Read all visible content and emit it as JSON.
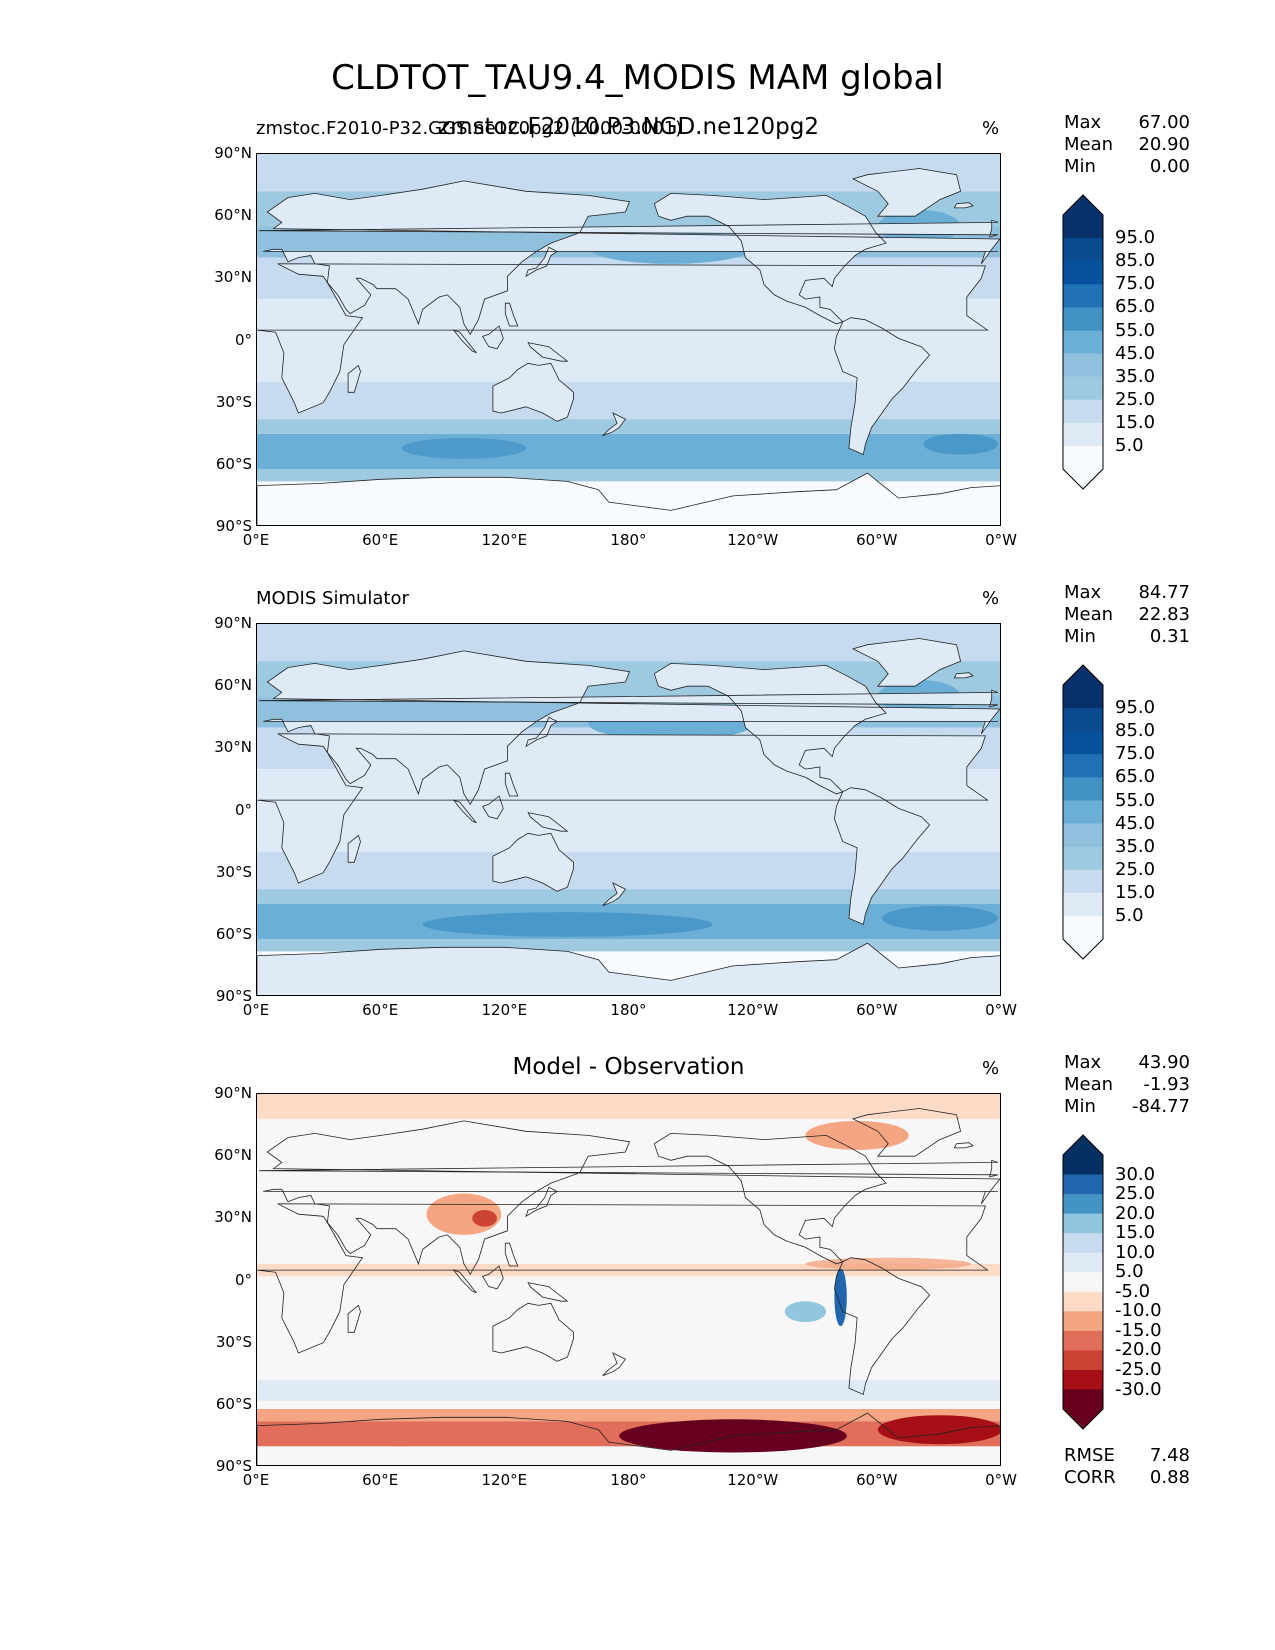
{
  "title": "CLDTOT_TAU9.4_MODIS MAM global",
  "x_ticks": [
    "0°E",
    "60°E",
    "120°E",
    "180°",
    "120°W",
    "60°W",
    "0°W"
  ],
  "y_ticks": [
    "90°N",
    "60°N",
    "30°N",
    "0°",
    "30°S",
    "60°S",
    "90°S"
  ],
  "panels": [
    {
      "left_title": "zmstoc.F2010-P32.GGS.ne120pg2 (2000-0001)",
      "center_title": "zmstoc.F2010.P3.NGD.ne120pg2",
      "units": "%",
      "stats": [
        {
          "name": "Max",
          "value": "67.00"
        },
        {
          "name": "Mean",
          "value": "20.90"
        },
        {
          "name": "Min",
          "value": "0.00"
        }
      ],
      "colorbar_labels": [
        "95.0",
        "85.0",
        "75.0",
        "65.0",
        "55.0",
        "45.0",
        "35.0",
        "25.0",
        "15.0",
        "5.0"
      ]
    },
    {
      "left_title": "MODIS Simulator",
      "center_title": "",
      "units": "%",
      "stats": [
        {
          "name": "Max",
          "value": "84.77"
        },
        {
          "name": "Mean",
          "value": "22.83"
        },
        {
          "name": "Min",
          "value": "0.31"
        }
      ],
      "colorbar_labels": [
        "95.0",
        "85.0",
        "75.0",
        "65.0",
        "55.0",
        "45.0",
        "35.0",
        "25.0",
        "15.0",
        "5.0"
      ]
    },
    {
      "left_title": "",
      "center_title": "Model - Observation",
      "units": "%",
      "stats": [
        {
          "name": "Max",
          "value": "43.90"
        },
        {
          "name": "Mean",
          "value": "-1.93"
        },
        {
          "name": "Min",
          "value": "-84.77"
        }
      ],
      "colorbar_labels": [
        "30.0",
        "25.0",
        "20.0",
        "15.0",
        "10.0",
        "5.0",
        "-5.0",
        "-10.0",
        "-15.0",
        "-20.0",
        "-25.0",
        "-30.0"
      ],
      "bottom_stats": [
        {
          "name": "RMSE",
          "value": "7.48"
        },
        {
          "name": "CORR",
          "value": "0.88"
        }
      ]
    }
  ],
  "colors": {
    "seq_blues": [
      "#f7fbff",
      "#deebf7",
      "#c6dbef",
      "#9ecae1",
      "#8fc1de",
      "#6baed6",
      "#4292c6",
      "#2171b5",
      "#08519c",
      "#0a4a90",
      "#08306b"
    ],
    "diverging": [
      "#67001f",
      "#a50f15",
      "#cb4335",
      "#e06e5a",
      "#f4a582",
      "#fddbc7",
      "#f7f7f7",
      "#deebf7",
      "#c6dbef",
      "#92c5de",
      "#4393c3",
      "#2166ac",
      "#053061"
    ],
    "coast": "#222222"
  },
  "chart_data": [
    {
      "type": "heatmap",
      "variable": "CLDTOT_TAU9.4_MODIS",
      "lat_range": [
        -90,
        90
      ],
      "lon_range": [
        0,
        360
      ],
      "stats": {
        "max": 67.0,
        "mean": 20.9,
        "min": 0.0
      },
      "levels": [
        5,
        15,
        25,
        35,
        45,
        55,
        65,
        75,
        85,
        95
      ],
      "units": "%"
    },
    {
      "type": "heatmap",
      "variable": "CLDTOT_TAU9.4_MODIS",
      "lat_range": [
        -90,
        90
      ],
      "lon_range": [
        0,
        360
      ],
      "stats": {
        "max": 84.77,
        "mean": 22.83,
        "min": 0.31
      },
      "levels": [
        5,
        15,
        25,
        35,
        45,
        55,
        65,
        75,
        85,
        95
      ],
      "units": "%"
    },
    {
      "type": "heatmap",
      "variable": "CLDTOT_TAU9.4_MODIS difference",
      "lat_range": [
        -90,
        90
      ],
      "lon_range": [
        0,
        360
      ],
      "stats": {
        "max": 43.9,
        "mean": -1.93,
        "min": -84.77,
        "rmse": 7.48,
        "corr": 0.88
      },
      "levels": [
        -30,
        -25,
        -20,
        -15,
        -10,
        -5,
        5,
        10,
        15,
        20,
        25,
        30
      ],
      "units": "%"
    }
  ]
}
